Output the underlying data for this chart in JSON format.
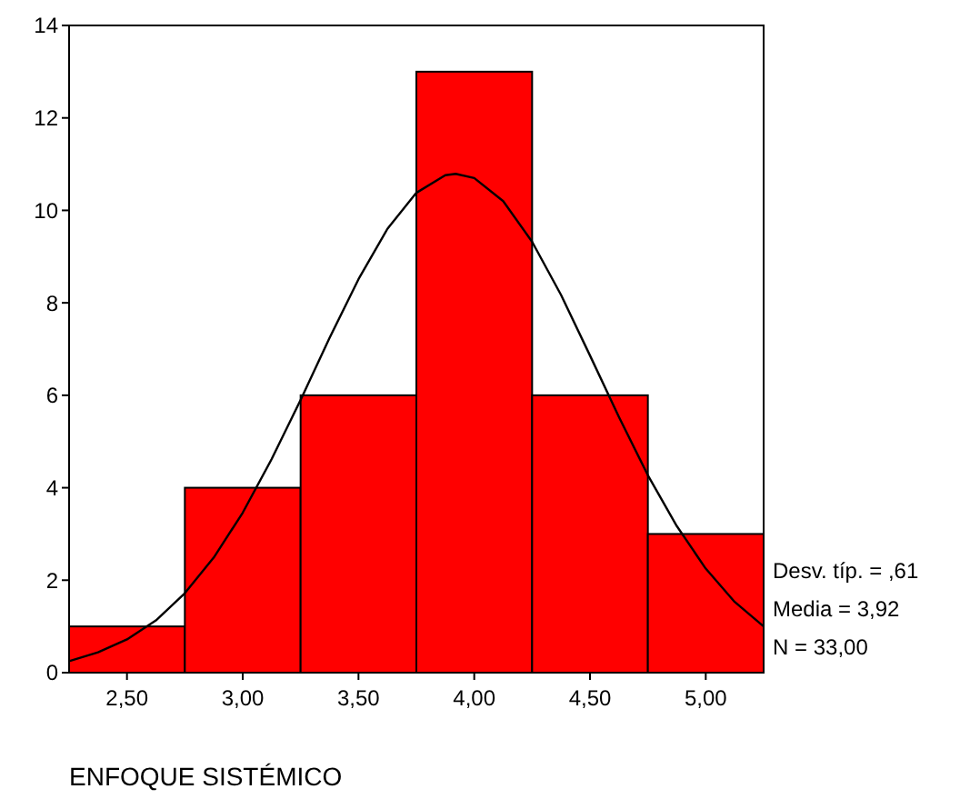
{
  "chart_data": {
    "type": "histogram",
    "xlabel": "ENFOQUE SISTÉMICO",
    "bins": [
      2.25,
      2.75,
      3.25,
      3.75,
      4.25,
      4.75,
      5.25
    ],
    "series": [
      {
        "color": "#ff0000",
        "values": [
          1,
          4,
          6,
          13,
          6,
          3
        ]
      },
      {
        "type": "line",
        "color": "#000000",
        "x": [
          2.25,
          2.375,
          2.5,
          2.625,
          2.75,
          2.875,
          3.0,
          3.125,
          3.25,
          3.375,
          3.5,
          3.625,
          3.75,
          3.875,
          3.92,
          4.0,
          4.125,
          4.25,
          4.375,
          4.5,
          4.625,
          4.75,
          4.875,
          5.0,
          5.125,
          5.25
        ],
        "values": [
          0.25,
          0.44,
          0.72,
          1.13,
          1.72,
          2.49,
          3.46,
          4.62,
          5.9,
          7.24,
          8.51,
          9.6,
          10.38,
          10.76,
          10.79,
          10.7,
          10.2,
          9.32,
          8.17,
          6.86,
          5.53,
          4.27,
          3.17,
          2.25,
          1.53,
          1.0
        ]
      }
    ],
    "xlim": [
      2.25,
      5.25
    ],
    "xticks": [
      {
        "value": 2.5,
        "label": "2,50"
      },
      {
        "value": 3,
        "label": "3,00"
      },
      {
        "value": 3.5,
        "label": "3,50"
      },
      {
        "value": 4,
        "label": "4,00"
      },
      {
        "value": 4.5,
        "label": "4,50"
      },
      {
        "value": 5,
        "label": "5,00"
      }
    ],
    "ylim": [
      0,
      14
    ],
    "yticks": [
      0,
      2,
      4,
      6,
      8,
      10,
      12,
      14
    ],
    "annotations": [
      "Desv. típ. = ,61",
      "Media = 3,92",
      "N = 33,00"
    ]
  }
}
